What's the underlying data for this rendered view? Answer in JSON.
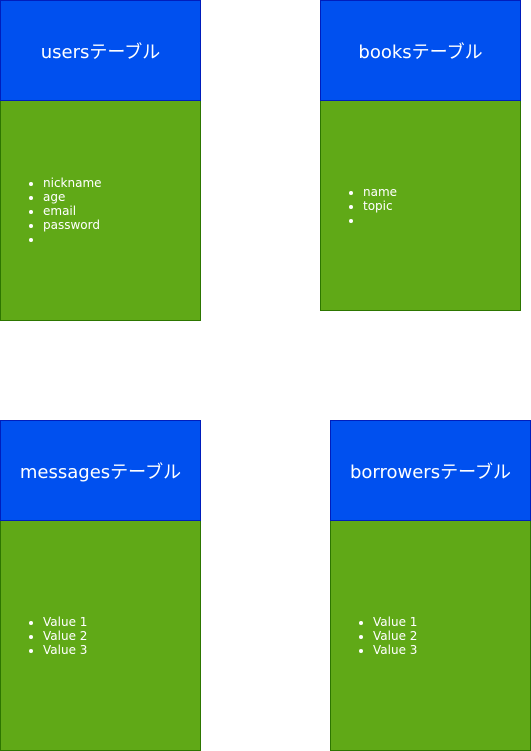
{
  "tables": [
    {
      "title": "usersテーブル",
      "fields": [
        "nickname",
        "age",
        "email",
        "password",
        ""
      ]
    },
    {
      "title": "booksテーブル",
      "fields": [
        "name",
        "topic",
        ""
      ]
    },
    {
      "title": "messagesテーブル",
      "fields": [
        "Value 1",
        "Value 2",
        "Value 3"
      ]
    },
    {
      "title": "borrowersテーブル",
      "fields": [
        "Value 1",
        "Value 2",
        "Value 3"
      ]
    }
  ],
  "colors": {
    "header": "#0050ef",
    "body": "#60a917"
  }
}
